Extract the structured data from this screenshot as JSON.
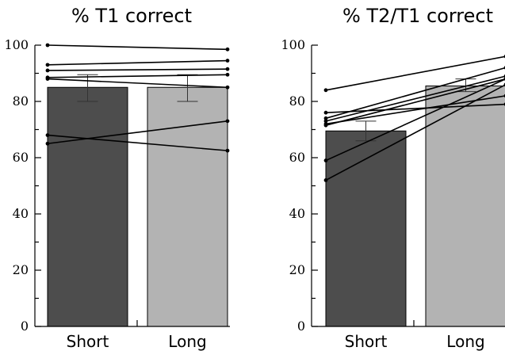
{
  "chart_data": [
    {
      "type": "bar",
      "title": "% T1 correct",
      "categories": [
        "Short",
        "Long"
      ],
      "values": [
        85,
        85
      ],
      "errors": [
        {
          "low": 80,
          "high": 89.5
        },
        {
          "low": 80,
          "high": 89.5
        }
      ],
      "bar_colors": [
        "#4d4d4d",
        "#b3b3b3"
      ],
      "subjects": [
        [
          100,
          98.5
        ],
        [
          93,
          94.5
        ],
        [
          91,
          91.5
        ],
        [
          88.5,
          89.5
        ],
        [
          88,
          85
        ],
        [
          68,
          62.5
        ],
        [
          65,
          73
        ]
      ],
      "ylim": [
        0,
        100
      ],
      "yticks": [
        0,
        20,
        40,
        60,
        80,
        100
      ],
      "xlabel": "",
      "ylabel": ""
    },
    {
      "type": "bar",
      "title": "% T2/T1 correct",
      "categories": [
        "Short",
        "Long"
      ],
      "values": [
        69.5,
        85.5
      ],
      "errors": [
        {
          "low": 66,
          "high": 73
        },
        {
          "low": 83.5,
          "high": 88
        }
      ],
      "bar_colors": [
        "#4d4d4d",
        "#b3b3b3"
      ],
      "subjects": [
        [
          84,
          96
        ],
        [
          76,
          79
        ],
        [
          74,
          92
        ],
        [
          73,
          89
        ],
        [
          72,
          82
        ],
        [
          71.5,
          88
        ],
        [
          59,
          88
        ],
        [
          52,
          86
        ]
      ],
      "ylim": [
        0,
        100
      ],
      "yticks": [
        0,
        20,
        40,
        60,
        80,
        100
      ],
      "xlabel": "",
      "ylabel": ""
    }
  ]
}
